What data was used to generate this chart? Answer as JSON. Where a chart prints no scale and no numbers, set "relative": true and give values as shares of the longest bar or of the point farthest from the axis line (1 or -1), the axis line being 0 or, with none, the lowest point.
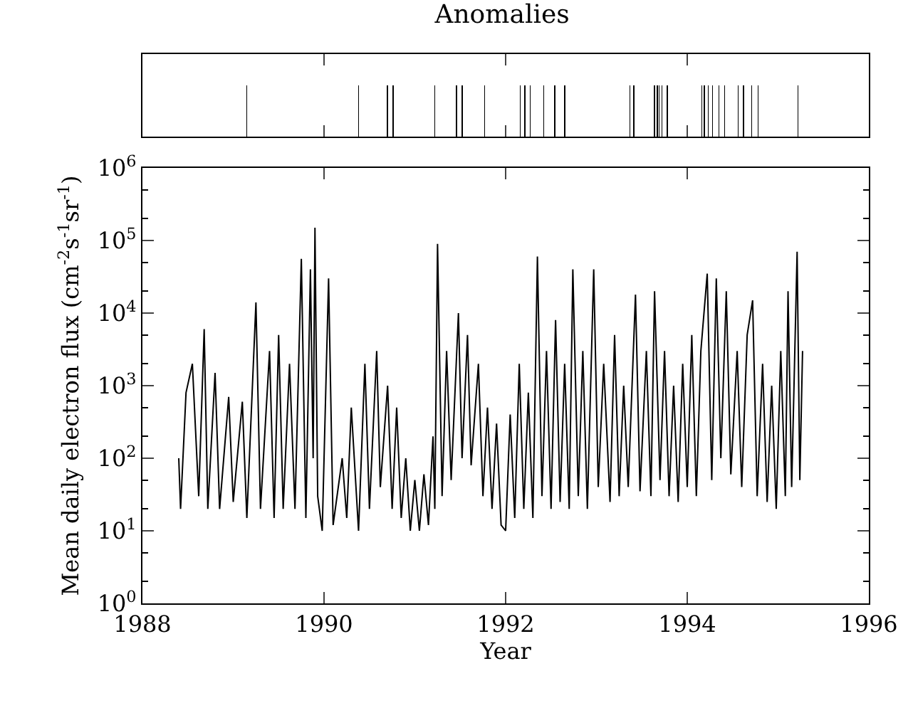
{
  "chart_data": [
    {
      "type": "bar",
      "title": "Anomalies",
      "relative": true,
      "tick_labels": false,
      "xlim": [
        1988,
        1996
      ],
      "color": "#000000",
      "x": [
        1989.15,
        1990.38,
        1990.7,
        1990.76,
        1991.22,
        1991.46,
        1991.52,
        1991.77,
        1992.16,
        1992.21,
        1992.27,
        1992.42,
        1992.54,
        1992.65,
        1993.37,
        1993.41,
        1993.64,
        1993.67,
        1993.69,
        1993.72,
        1993.78,
        1994.16,
        1994.19,
        1994.23,
        1994.28,
        1994.35,
        1994.41,
        1994.56,
        1994.62,
        1994.71,
        1994.78,
        1995.22
      ],
      "values": [
        1,
        1,
        1,
        1,
        1,
        1,
        1,
        1,
        1,
        1,
        1,
        1,
        1,
        1,
        1,
        1,
        1,
        1,
        1,
        1,
        1,
        1,
        1,
        1,
        1,
        1,
        1,
        1,
        1,
        1,
        1,
        1
      ]
    },
    {
      "type": "line",
      "xlabel": "Year",
      "ylabel": "Mean daily electron flux (cm$^{-2}$s$^{-1}$sr$^{-1}$)",
      "log": "y",
      "color": "#000000",
      "xlim": [
        1988,
        1996
      ],
      "xticks": [
        1988,
        1990,
        1992,
        1994,
        1996
      ],
      "ylim": [
        1,
        1000000
      ],
      "yticks": [
        {
          "value": 1,
          "label": "10$^{0}$"
        },
        {
          "value": 10,
          "label": "10$^{1}$"
        },
        {
          "value": 100,
          "label": "10$^{2}$"
        },
        {
          "value": 1000,
          "label": "10$^{3}$"
        },
        {
          "value": 10000,
          "label": "10$^{4}$"
        },
        {
          "value": 100000,
          "label": "10$^{5}$"
        },
        {
          "value": 1000000,
          "label": "10$^{6}$"
        }
      ],
      "x": [
        1988.4,
        1988.42,
        1988.48,
        1988.55,
        1988.62,
        1988.68,
        1988.72,
        1988.8,
        1988.85,
        1988.95,
        1989.0,
        1989.1,
        1989.15,
        1989.25,
        1989.3,
        1989.4,
        1989.45,
        1989.5,
        1989.55,
        1989.62,
        1989.68,
        1989.75,
        1989.8,
        1989.85,
        1989.88,
        1989.9,
        1989.93,
        1989.98,
        1990.05,
        1990.1,
        1990.2,
        1990.25,
        1990.3,
        1990.38,
        1990.45,
        1990.5,
        1990.58,
        1990.62,
        1990.7,
        1990.75,
        1990.8,
        1990.85,
        1990.9,
        1990.95,
        1991.0,
        1991.05,
        1991.1,
        1991.15,
        1991.2,
        1991.22,
        1991.25,
        1991.3,
        1991.35,
        1991.4,
        1991.48,
        1991.52,
        1991.58,
        1991.62,
        1991.7,
        1991.75,
        1991.8,
        1991.85,
        1991.9,
        1991.95,
        1992.0,
        1992.05,
        1992.1,
        1992.15,
        1992.2,
        1992.25,
        1992.3,
        1992.35,
        1992.4,
        1992.45,
        1992.5,
        1992.55,
        1992.6,
        1992.65,
        1992.7,
        1992.74,
        1992.8,
        1992.85,
        1992.9,
        1992.97,
        1993.02,
        1993.08,
        1993.15,
        1993.2,
        1993.25,
        1993.3,
        1993.35,
        1993.43,
        1993.48,
        1993.55,
        1993.6,
        1993.64,
        1993.7,
        1993.75,
        1993.8,
        1993.85,
        1993.9,
        1993.95,
        1994.0,
        1994.05,
        1994.1,
        1994.15,
        1994.22,
        1994.27,
        1994.32,
        1994.37,
        1994.43,
        1994.48,
        1994.55,
        1994.6,
        1994.66,
        1994.72,
        1994.77,
        1994.83,
        1994.88,
        1994.93,
        1994.98,
        1995.03,
        1995.08,
        1995.11,
        1995.15,
        1995.21,
        1995.24,
        1995.27
      ],
      "values": [
        100,
        20,
        800,
        2000,
        30,
        6000,
        20,
        1500,
        20,
        700,
        25,
        600,
        15,
        14000,
        20,
        3000,
        15,
        5000,
        20,
        2000,
        20,
        56000,
        15,
        40000,
        100,
        150000,
        30,
        10,
        30000,
        12,
        100,
        15,
        500,
        10,
        2000,
        20,
        3000,
        40,
        1000,
        20,
        500,
        15,
        100,
        10,
        50,
        10,
        60,
        12,
        200,
        20,
        90000,
        30,
        3000,
        50,
        10000,
        100,
        5000,
        80,
        2000,
        30,
        500,
        20,
        300,
        12,
        10,
        400,
        15,
        2000,
        20,
        800,
        15,
        60000,
        30,
        3000,
        20,
        8000,
        25,
        2000,
        20,
        40000,
        30,
        3000,
        20,
        40000,
        40,
        2000,
        25,
        5000,
        30,
        1000,
        40,
        18000,
        35,
        3000,
        30,
        20000,
        50,
        3000,
        30,
        1000,
        25,
        2000,
        40,
        5000,
        30,
        3000,
        35000,
        50,
        30000,
        100,
        20000,
        60,
        3000,
        40,
        5000,
        15000,
        30,
        2000,
        25,
        1000,
        20,
        3000,
        30,
        20000,
        40,
        70000,
        50,
        3000
      ]
    }
  ]
}
